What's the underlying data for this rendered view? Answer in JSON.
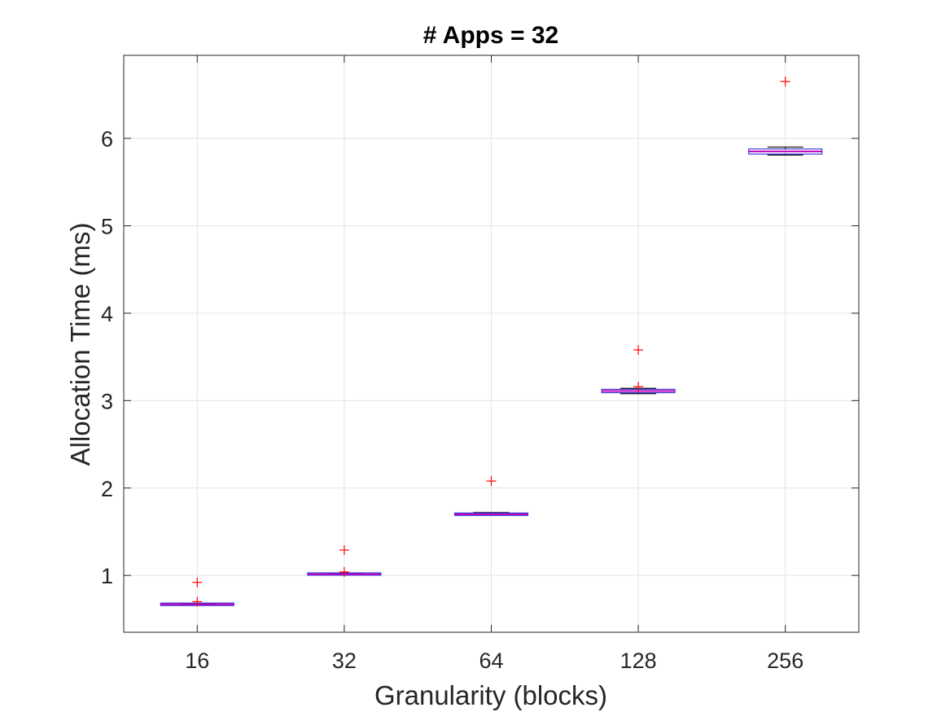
{
  "chart_data": {
    "type": "boxplot",
    "title": "# Apps = 32",
    "xlabel": "Granularity (blocks)",
    "ylabel": "Allocation Time (ms)",
    "categories": [
      "16",
      "32",
      "64",
      "128",
      "256"
    ],
    "ylim": [
      0.35,
      6.95
    ],
    "yticks": [
      1,
      2,
      3,
      4,
      5,
      6
    ],
    "grid": true,
    "boxes": [
      {
        "category": "16",
        "whisker_low": 0.66,
        "q1": 0.665,
        "median": 0.67,
        "q3": 0.675,
        "whisker_high": 0.68,
        "outliers": [
          0.92,
          0.7
        ]
      },
      {
        "category": "32",
        "whisker_low": 1.01,
        "q1": 1.012,
        "median": 1.015,
        "q3": 1.02,
        "whisker_high": 1.025,
        "outliers": [
          1.29,
          1.04
        ]
      },
      {
        "category": "64",
        "whisker_low": 1.69,
        "q1": 1.695,
        "median": 1.7,
        "q3": 1.705,
        "whisker_high": 1.72,
        "outliers": [
          2.08
        ]
      },
      {
        "category": "128",
        "whisker_low": 3.08,
        "q1": 3.1,
        "median": 3.11,
        "q3": 3.12,
        "whisker_high": 3.14,
        "outliers": [
          3.58,
          3.16
        ]
      },
      {
        "category": "256",
        "whisker_low": 5.81,
        "q1": 5.83,
        "median": 5.85,
        "q3": 5.87,
        "whisker_high": 5.9,
        "outliers": [
          6.65
        ]
      }
    ],
    "colors": {
      "box_edge": "#3b3bd9",
      "median": "#c000c0",
      "whisker": "#000000",
      "outlier": "#ff0000",
      "grid": "#e3e3e3",
      "axes": "#262626"
    }
  }
}
